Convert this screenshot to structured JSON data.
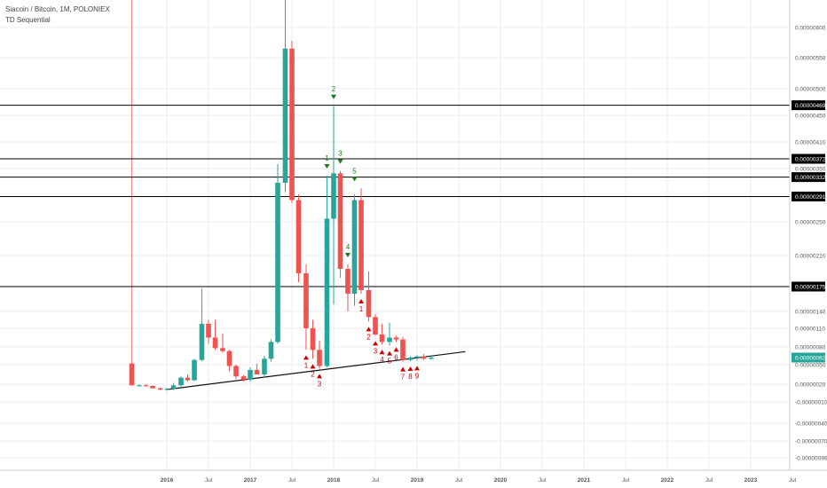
{
  "header": {
    "title": "Siacoin / Bitcoin, 1M, POLONIEX",
    "indicator": "TD Sequential"
  },
  "colors": {
    "bull": "#26a69a",
    "bear": "#ef5350",
    "level_line": "#000000",
    "trendline": "#111111",
    "last_price_bg": "#26a69a",
    "axis_text": "#555555",
    "grid": "#eeeeee",
    "td_up": "#1b7a1b",
    "td_down": "#cc0000",
    "vertical_marker": "#f08080"
  },
  "chart_data": {
    "type": "candlestick",
    "y_ticks": [
      "0.00000600",
      "0.00000550",
      "0.00000500",
      "0.00000450",
      "0.00000410",
      "0.00000350",
      "0.00000290",
      "0.00000250",
      "0.00000210",
      "0.00000175",
      "0.00000140",
      "0.00000110",
      "0.00000080",
      "0.00000050",
      "0.00000020",
      "-0.00000010",
      "-0.00000040",
      "-0.00000070",
      "-0.00000096"
    ],
    "y_tick_values": [
      600,
      550,
      500,
      450,
      410,
      350,
      290,
      250,
      210,
      175,
      140,
      110,
      80,
      50,
      20,
      -10,
      -40,
      -70,
      -96
    ],
    "x_ticks": [
      {
        "label": "2016",
        "t": 2016.0
      },
      {
        "label": "Jul",
        "t": 2016.5
      },
      {
        "label": "2017",
        "t": 2017.0
      },
      {
        "label": "Jul",
        "t": 2017.5
      },
      {
        "label": "2018",
        "t": 2018.0
      },
      {
        "label": "Jul",
        "t": 2018.5
      },
      {
        "label": "2019",
        "t": 2019.0
      },
      {
        "label": "Jul",
        "t": 2019.5
      },
      {
        "label": "2020",
        "t": 2020.0
      },
      {
        "label": "Jul",
        "t": 2020.5
      },
      {
        "label": "2021",
        "t": 2021.0
      },
      {
        "label": "Jul",
        "t": 2021.5
      },
      {
        "label": "2022",
        "t": 2022.0
      },
      {
        "label": "Jul",
        "t": 2022.5
      },
      {
        "label": "2023",
        "t": 2023.0
      },
      {
        "label": "Jul",
        "t": 2023.5
      }
    ],
    "levels": [
      {
        "label": "0.00000469",
        "value": 469
      },
      {
        "label": "0.00000372",
        "value": 372
      },
      {
        "label": "0.00000332",
        "value": 332
      },
      {
        "label": "0.00000291",
        "value": 291
      },
      {
        "label": "0.00000175",
        "value": 175
      }
    ],
    "last_price": {
      "label": "0.00000062",
      "value": 62
    },
    "trendline": {
      "t1": 2016.0,
      "v1": 11,
      "t2": 2019.58,
      "v2": 72
    },
    "vertical_marker_t": 2015.58,
    "candles": [
      {
        "t": 2015.58,
        "o": 52,
        "h": 52,
        "l": 18,
        "c": 18
      },
      {
        "t": 2015.67,
        "o": 18,
        "h": 20,
        "l": 16,
        "c": 18
      },
      {
        "t": 2015.75,
        "o": 18,
        "h": 20,
        "l": 16,
        "c": 17
      },
      {
        "t": 2015.83,
        "o": 17,
        "h": 18,
        "l": 13,
        "c": 13
      },
      {
        "t": 2015.92,
        "o": 13,
        "h": 14,
        "l": 10,
        "c": 11
      },
      {
        "t": 2016.0,
        "o": 11,
        "h": 14,
        "l": 9,
        "c": 12
      },
      {
        "t": 2016.08,
        "o": 12,
        "h": 22,
        "l": 10,
        "c": 18
      },
      {
        "t": 2016.17,
        "o": 18,
        "h": 32,
        "l": 16,
        "c": 30
      },
      {
        "t": 2016.25,
        "o": 30,
        "h": 35,
        "l": 24,
        "c": 26
      },
      {
        "t": 2016.33,
        "o": 26,
        "h": 60,
        "l": 25,
        "c": 58
      },
      {
        "t": 2016.42,
        "o": 58,
        "h": 172,
        "l": 56,
        "c": 118
      },
      {
        "t": 2016.5,
        "o": 118,
        "h": 125,
        "l": 85,
        "c": 95
      },
      {
        "t": 2016.58,
        "o": 95,
        "h": 125,
        "l": 75,
        "c": 78
      },
      {
        "t": 2016.67,
        "o": 78,
        "h": 102,
        "l": 70,
        "c": 73
      },
      {
        "t": 2016.75,
        "o": 73,
        "h": 75,
        "l": 40,
        "c": 48
      },
      {
        "t": 2016.83,
        "o": 48,
        "h": 50,
        "l": 28,
        "c": 32
      },
      {
        "t": 2016.92,
        "o": 32,
        "h": 34,
        "l": 24,
        "c": 27
      },
      {
        "t": 2017.0,
        "o": 27,
        "h": 46,
        "l": 24,
        "c": 42
      },
      {
        "t": 2017.08,
        "o": 42,
        "h": 52,
        "l": 38,
        "c": 35
      },
      {
        "t": 2017.17,
        "o": 35,
        "h": 65,
        "l": 30,
        "c": 60
      },
      {
        "t": 2017.25,
        "o": 60,
        "h": 92,
        "l": 55,
        "c": 88
      },
      {
        "t": 2017.33,
        "o": 88,
        "h": 360,
        "l": 85,
        "c": 320
      },
      {
        "t": 2017.42,
        "o": 320,
        "h": 745,
        "l": 300,
        "c": 565
      },
      {
        "t": 2017.5,
        "o": 565,
        "h": 578,
        "l": 280,
        "c": 285
      },
      {
        "t": 2017.58,
        "o": 285,
        "h": 295,
        "l": 180,
        "c": 190
      },
      {
        "t": 2017.67,
        "o": 190,
        "h": 200,
        "l": 75,
        "c": 110
      },
      {
        "t": 2017.75,
        "o": 110,
        "h": 125,
        "l": 60,
        "c": 75
      },
      {
        "t": 2017.83,
        "o": 75,
        "h": 90,
        "l": 44,
        "c": 48
      },
      {
        "t": 2017.92,
        "o": 48,
        "h": 335,
        "l": 46,
        "c": 255
      },
      {
        "t": 2018.0,
        "o": 255,
        "h": 467,
        "l": 150,
        "c": 340
      },
      {
        "t": 2018.08,
        "o": 340,
        "h": 345,
        "l": 185,
        "c": 195
      },
      {
        "t": 2018.17,
        "o": 195,
        "h": 200,
        "l": 140,
        "c": 165
      },
      {
        "t": 2018.25,
        "o": 165,
        "h": 295,
        "l": 148,
        "c": 285
      },
      {
        "t": 2018.33,
        "o": 285,
        "h": 308,
        "l": 165,
        "c": 170
      },
      {
        "t": 2018.42,
        "o": 170,
        "h": 192,
        "l": 122,
        "c": 130
      },
      {
        "t": 2018.5,
        "o": 130,
        "h": 135,
        "l": 98,
        "c": 100
      },
      {
        "t": 2018.58,
        "o": 100,
        "h": 118,
        "l": 84,
        "c": 88
      },
      {
        "t": 2018.67,
        "o": 88,
        "h": 120,
        "l": 82,
        "c": 95
      },
      {
        "t": 2018.75,
        "o": 95,
        "h": 98,
        "l": 88,
        "c": 92
      },
      {
        "t": 2018.83,
        "o": 92,
        "h": 96,
        "l": 55,
        "c": 58
      },
      {
        "t": 2018.92,
        "o": 58,
        "h": 64,
        "l": 56,
        "c": 62
      },
      {
        "t": 2019.0,
        "o": 62,
        "h": 66,
        "l": 57,
        "c": 64
      },
      {
        "t": 2019.08,
        "o": 64,
        "h": 68,
        "l": 58,
        "c": 60
      },
      {
        "t": 2019.17,
        "o": 60,
        "h": 66,
        "l": 58,
        "c": 62
      }
    ],
    "td_markers": [
      {
        "label": "2",
        "t": 2018.0,
        "v": 467,
        "dir": "down"
      },
      {
        "label": "3",
        "t": 2018.08,
        "v": 345,
        "dir": "down"
      },
      {
        "label": "5",
        "t": 2018.25,
        "v": 308,
        "dir": "down"
      },
      {
        "label": "1",
        "t": 2017.92,
        "v": 335,
        "dir": "down"
      },
      {
        "label": "4",
        "t": 2018.17,
        "v": 200,
        "dir": "down"
      },
      {
        "label": "1",
        "t": 2017.67,
        "v": 75,
        "dir": "up"
      },
      {
        "label": "2",
        "t": 2017.75,
        "v": 60,
        "dir": "up"
      },
      {
        "label": "3",
        "t": 2017.83,
        "v": 44,
        "dir": "up"
      },
      {
        "label": "1",
        "t": 2018.33,
        "v": 165,
        "dir": "up"
      },
      {
        "label": "2",
        "t": 2018.42,
        "v": 122,
        "dir": "up"
      },
      {
        "label": "3",
        "t": 2018.5,
        "v": 98,
        "dir": "up"
      },
      {
        "label": "4",
        "t": 2018.58,
        "v": 84,
        "dir": "up"
      },
      {
        "label": "5",
        "t": 2018.67,
        "v": 82,
        "dir": "up"
      },
      {
        "label": "6",
        "t": 2018.75,
        "v": 88,
        "dir": "up"
      },
      {
        "label": "7",
        "t": 2018.83,
        "v": 55,
        "dir": "up"
      },
      {
        "label": "8",
        "t": 2018.92,
        "v": 56,
        "dir": "up"
      },
      {
        "label": "9",
        "t": 2019.0,
        "v": 57,
        "dir": "up"
      }
    ]
  }
}
